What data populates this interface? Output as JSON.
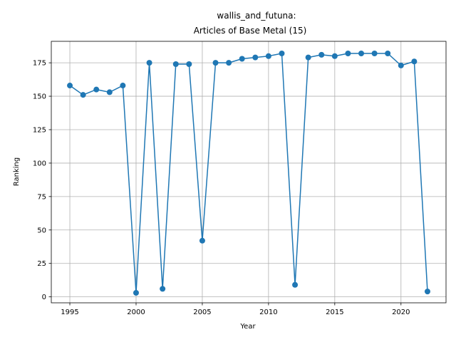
{
  "chart_data": {
    "type": "line",
    "title": "wallis_and_futuna:",
    "subtitle": "Articles of Base Metal (15)",
    "xlabel": "Year",
    "ylabel": "Ranking",
    "xlim": [
      1993.6,
      2023.4
    ],
    "ylim": [
      -4.45,
      191.05
    ],
    "grid": true,
    "color": "#1f77b4",
    "xticks": [
      1995,
      2000,
      2005,
      2010,
      2015,
      2020
    ],
    "yticks": [
      0,
      25,
      50,
      75,
      100,
      125,
      150,
      175
    ],
    "x": [
      1995,
      1996,
      1997,
      1998,
      1999,
      2000,
      2001,
      2002,
      2003,
      2004,
      2005,
      2006,
      2007,
      2008,
      2009,
      2010,
      2011,
      2012,
      2013,
      2014,
      2015,
      2016,
      2017,
      2018,
      2019,
      2020,
      2021,
      2022
    ],
    "series": [
      {
        "values": [
          158,
          151,
          155,
          153,
          158,
          3,
          175,
          6,
          174,
          174,
          42,
          175,
          175,
          178,
          179,
          180,
          182,
          9,
          179,
          181,
          180,
          182,
          182,
          182,
          182,
          173,
          176,
          4
        ]
      }
    ]
  }
}
